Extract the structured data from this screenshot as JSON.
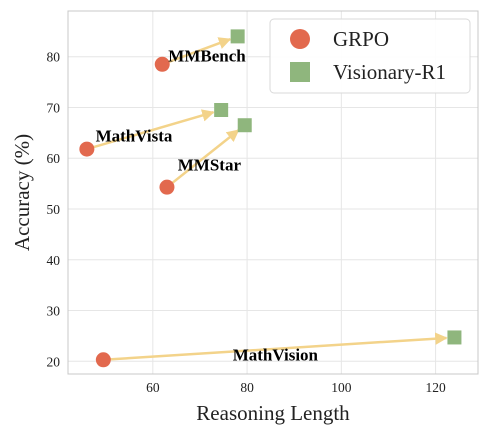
{
  "chart_data": {
    "type": "scatter",
    "title": "",
    "xlabel": "Reasoning Length",
    "ylabel": "Accuracy (%)",
    "xlim": [
      42,
      129
    ],
    "ylim": [
      17.5,
      89
    ],
    "x_ticks": [
      60,
      80,
      100,
      120
    ],
    "y_ticks": [
      20,
      30,
      40,
      50,
      60,
      70,
      80
    ],
    "grid": true,
    "legend_position": "top-right",
    "series": [
      {
        "name": "GRPO",
        "marker": "circle",
        "color": "#e2694e"
      },
      {
        "name": "Visionary-R1",
        "marker": "square",
        "color": "#8fb67d"
      }
    ],
    "benchmarks": [
      {
        "label": "MMBench",
        "grpo": {
          "x": 62,
          "y": 78.5
        },
        "visionary": {
          "x": 78,
          "y": 84
        }
      },
      {
        "label": "MathVista",
        "grpo": {
          "x": 46,
          "y": 61.8
        },
        "visionary": {
          "x": 74.5,
          "y": 69.5
        }
      },
      {
        "label": "MMStar",
        "grpo": {
          "x": 63,
          "y": 54.3
        },
        "visionary": {
          "x": 79.5,
          "y": 66.5
        }
      },
      {
        "label": "MathVision",
        "grpo": {
          "x": 49.5,
          "y": 20.3
        },
        "visionary": {
          "x": 124,
          "y": 24.7
        }
      }
    ],
    "arrow_color": "#f3d38a",
    "grid_color": "#e6e6e6",
    "axis_color": "#c8c8c8"
  }
}
